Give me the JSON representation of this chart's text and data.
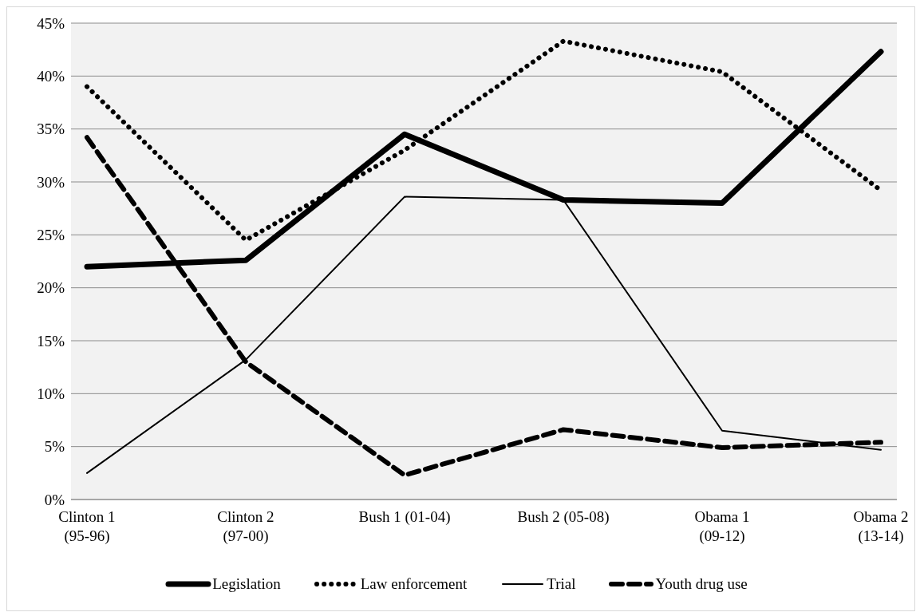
{
  "chart_data": {
    "type": "line",
    "categories": [
      "Clinton 1\n(95-96)",
      "Clinton 2\n(97-00)",
      "Bush 1 (01-04)",
      "Bush 2 (05-08)",
      "Obama 1\n(09-12)",
      "Obama 2\n(13-14)"
    ],
    "series": [
      {
        "name": "Legislation",
        "color": "#000000",
        "line_style": "solid",
        "values": [
          22,
          22.6,
          34.5,
          28.3,
          28,
          42.3
        ]
      },
      {
        "name": "Law enforcement",
        "color": "#000000",
        "line_style": "dotted",
        "values": [
          39,
          24.5,
          33,
          43.3,
          40.4,
          29.2
        ]
      },
      {
        "name": "Trial",
        "color": "#000000",
        "line_style": "solid",
        "values": [
          2.5,
          13.2,
          28.6,
          28.3,
          6.5,
          4.7
        ]
      },
      {
        "name": "Youth drug use",
        "color": "#000000",
        "line_style": "dashed",
        "values": [
          34.2,
          13,
          2.3,
          6.6,
          4.9,
          5.4
        ]
      }
    ],
    "ylim": [
      0,
      45
    ],
    "yticks": [
      {
        "value": 0,
        "label": "0%"
      },
      {
        "value": 5,
        "label": "5%"
      },
      {
        "value": 10,
        "label": "10%"
      },
      {
        "value": 15,
        "label": "15%"
      },
      {
        "value": 20,
        "label": "20%"
      },
      {
        "value": 25,
        "label": "25%"
      },
      {
        "value": 30,
        "label": "30%"
      },
      {
        "value": 35,
        "label": "35%"
      },
      {
        "value": 40,
        "label": "40%"
      },
      {
        "value": 45,
        "label": "45%"
      }
    ],
    "grid": "y",
    "legend": "bottom",
    "marker": "none"
  }
}
